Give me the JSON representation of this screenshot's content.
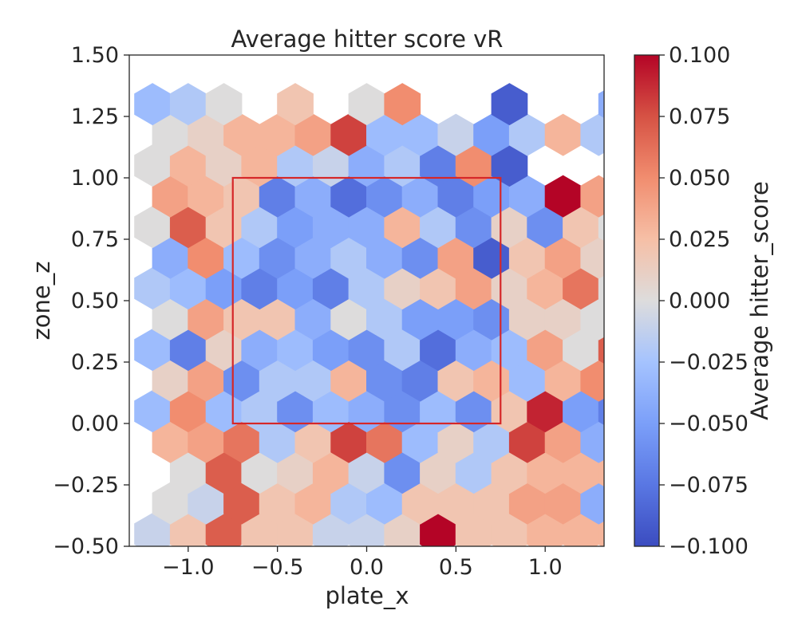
{
  "chart_data": {
    "type": "heatmap",
    "subtype": "hexbin",
    "title": "Average hitter score vR",
    "xlabel": "plate_x",
    "ylabel": "zone_z",
    "xlim": [
      -1.33,
      1.33
    ],
    "ylim": [
      -0.5,
      1.5
    ],
    "x_ticks": [
      -1.0,
      -0.5,
      0.0,
      0.5,
      1.0
    ],
    "x_tick_labels": [
      "−1.0",
      "−0.5",
      "0.0",
      "0.5",
      "1.0"
    ],
    "y_ticks": [
      -0.5,
      -0.25,
      0.0,
      0.25,
      0.5,
      0.75,
      1.0,
      1.25,
      1.5
    ],
    "y_tick_labels": [
      "−0.50",
      "−0.25",
      "0.00",
      "0.25",
      "0.50",
      "0.75",
      "1.00",
      "1.25",
      "1.50"
    ],
    "colormap": "coolwarm",
    "colorbar": {
      "label": "Average hitter_score",
      "vmin": -0.1,
      "vmax": 0.1,
      "ticks": [
        -0.1,
        -0.075,
        -0.05,
        -0.025,
        0.0,
        0.025,
        0.05,
        0.075,
        0.1
      ],
      "tick_labels": [
        "−0.100",
        "−0.075",
        "−0.050",
        "−0.025",
        "0.000",
        "0.025",
        "0.050",
        "0.075",
        "0.100"
      ]
    },
    "strike_zone": {
      "x": [
        -0.75,
        0.75
      ],
      "z": [
        0.0,
        1.0
      ],
      "color": "#d62728"
    },
    "hex_grid": {
      "x0": -1.2,
      "dx": 0.2,
      "z0": -0.45,
      "dz": 0.125,
      "note_values": "rows listed bottom (z=-0.45) to top; odd rows offset by half step in x; null = empty bin"
    },
    "rows": [
      [
        -0.01,
        0.02,
        0.07,
        0.02,
        0.02,
        -0.01,
        -0.01,
        0.01,
        0.1,
        0.02,
        0.02,
        0.03,
        0.03,
        0.03
      ],
      [
        0.0,
        -0.01,
        0.07,
        0.02,
        0.03,
        -0.02,
        -0.03,
        0.02,
        0.02,
        0.02,
        0.04,
        0.04,
        -0.04,
        0.02
      ],
      [
        null,
        0.0,
        0.07,
        0.0,
        0.01,
        0.03,
        -0.01,
        -0.06,
        0.01,
        -0.02,
        0.02,
        0.03,
        0.03,
        0.03
      ],
      [
        0.03,
        0.04,
        0.06,
        -0.02,
        0.02,
        0.08,
        0.06,
        -0.03,
        0.01,
        -0.02,
        0.08,
        0.04,
        -0.04,
        0.02
      ],
      [
        -0.03,
        0.05,
        -0.03,
        -0.02,
        -0.06,
        -0.03,
        -0.04,
        -0.06,
        -0.03,
        -0.06,
        0.02,
        0.09,
        -0.05,
        -0.07
      ],
      [
        0.01,
        0.04,
        -0.06,
        -0.02,
        -0.02,
        0.03,
        -0.06,
        -0.07,
        0.02,
        0.03,
        -0.03,
        0.03,
        0.05,
        0.06
      ],
      [
        -0.03,
        -0.07,
        0.01,
        -0.04,
        -0.03,
        -0.05,
        -0.06,
        -0.02,
        -0.08,
        -0.04,
        -0.03,
        0.04,
        0.0,
        0.07
      ],
      [
        0.0,
        0.04,
        0.02,
        0.02,
        -0.04,
        0.0,
        -0.02,
        -0.05,
        -0.05,
        -0.06,
        0.01,
        0.01,
        0.0,
        -0.02
      ],
      [
        -0.02,
        -0.03,
        -0.05,
        -0.07,
        -0.05,
        -0.07,
        -0.02,
        0.01,
        0.02,
        0.04,
        0.01,
        0.03,
        0.06,
        0.0
      ],
      [
        -0.04,
        0.05,
        -0.03,
        -0.06,
        -0.04,
        -0.02,
        -0.04,
        -0.06,
        0.04,
        -0.09,
        0.02,
        0.04,
        0.01,
        -0.01
      ],
      [
        0.0,
        0.07,
        0.02,
        -0.02,
        -0.05,
        -0.04,
        -0.04,
        0.03,
        -0.02,
        -0.06,
        0.01,
        -0.06,
        0.02,
        0.0
      ],
      [
        0.04,
        0.03,
        0.02,
        -0.07,
        -0.04,
        -0.08,
        -0.06,
        -0.04,
        -0.07,
        -0.05,
        -0.04,
        0.1,
        0.04,
        0.03
      ],
      [
        0.0,
        0.03,
        0.01,
        0.03,
        -0.02,
        -0.01,
        -0.04,
        -0.02,
        -0.07,
        0.05,
        -0.09,
        null,
        null,
        null
      ],
      [
        0.0,
        0.01,
        0.03,
        0.03,
        0.04,
        0.08,
        -0.03,
        -0.03,
        -0.01,
        -0.05,
        -0.02,
        0.03,
        -0.02,
        -0.03
      ],
      [
        -0.03,
        -0.02,
        0.0,
        null,
        0.02,
        null,
        0.0,
        0.05,
        null,
        null,
        -0.09,
        null,
        null,
        -0.04
      ]
    ]
  }
}
